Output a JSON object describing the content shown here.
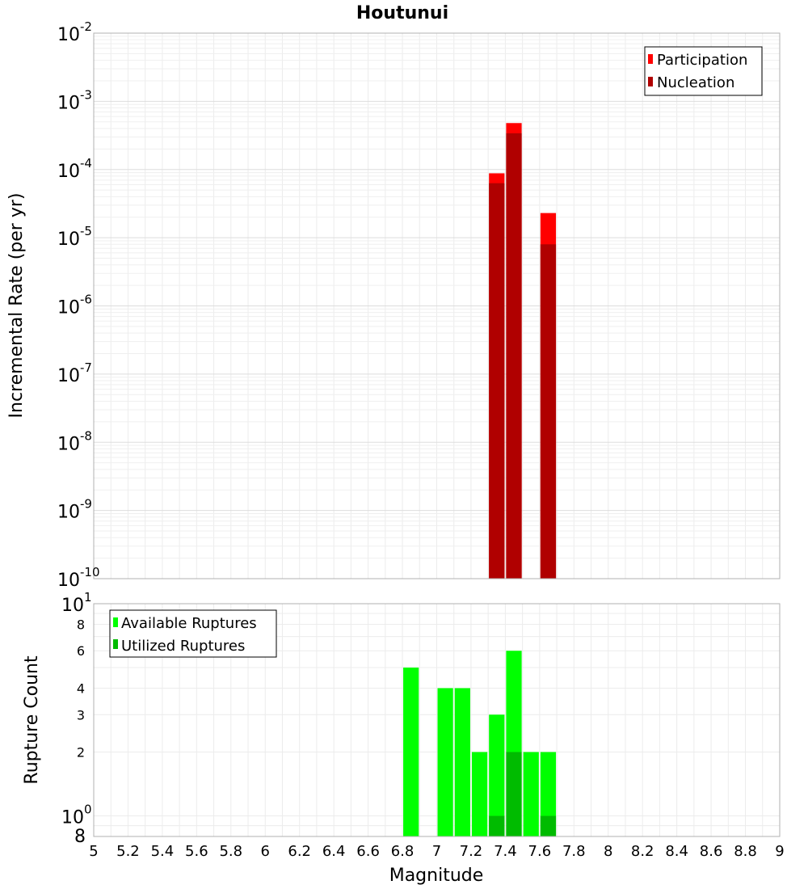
{
  "chart_data": [
    {
      "type": "bar",
      "title": "Houtunui",
      "xlabel": "",
      "ylabel": "Incremental Rate (per yr)",
      "yscale": "log",
      "xlim": [
        5,
        9
      ],
      "ylim": [
        1e-10,
        0.01
      ],
      "y_ticks": [
        {
          "base": "10",
          "exp": "-2"
        },
        {
          "base": "10",
          "exp": "-3"
        },
        {
          "base": "10",
          "exp": "-4"
        },
        {
          "base": "10",
          "exp": "-5"
        },
        {
          "base": "10",
          "exp": "-6"
        },
        {
          "base": "10",
          "exp": "-7"
        },
        {
          "base": "10",
          "exp": "-8"
        },
        {
          "base": "10",
          "exp": "-9"
        },
        {
          "base": "10",
          "exp": "-10"
        }
      ],
      "grid": true,
      "legend_position": "top-right",
      "bar_width": 0.1,
      "series": [
        {
          "name": "Participation",
          "color": "#ff0000",
          "points": [
            {
              "x": 7.35,
              "y": 8.8e-05
            },
            {
              "x": 7.45,
              "y": 0.00048
            },
            {
              "x": 7.65,
              "y": 2.3e-05
            }
          ]
        },
        {
          "name": "Nucleation",
          "color": "#b00000",
          "points": [
            {
              "x": 7.35,
              "y": 6.3e-05
            },
            {
              "x": 7.45,
              "y": 0.00034
            },
            {
              "x": 7.65,
              "y": 8e-06
            }
          ]
        }
      ]
    },
    {
      "type": "bar",
      "title": "",
      "xlabel": "Magnitude",
      "ylabel": "Rupture Count",
      "yscale": "log",
      "xlim": [
        5,
        9
      ],
      "ylim": [
        0.8,
        10
      ],
      "x_ticks": [
        "5",
        "5.2",
        "5.4",
        "5.6",
        "5.8",
        "6",
        "6.2",
        "6.4",
        "6.6",
        "6.8",
        "7",
        "7.2",
        "7.4",
        "7.6",
        "7.8",
        "8",
        "8.2",
        "8.4",
        "8.6",
        "8.8",
        "9"
      ],
      "y_ticks_minor": [
        {
          "value": 8,
          "label": "8"
        },
        {
          "value": 6,
          "label": "6"
        },
        {
          "value": 4,
          "label": "4"
        },
        {
          "value": 3,
          "label": "3"
        },
        {
          "value": 2,
          "label": "2"
        }
      ],
      "y_tick_top": {
        "base": "10",
        "exp": "1"
      },
      "y_tick_one": {
        "base": "10",
        "exp": "0"
      },
      "y_tick_bottom": "8",
      "grid": true,
      "legend_position": "top-left",
      "bar_width": 0.1,
      "series": [
        {
          "name": "Available Ruptures",
          "color": "#00ff00",
          "points": [
            {
              "x": 6.85,
              "y": 5
            },
            {
              "x": 7.05,
              "y": 4
            },
            {
              "x": 7.15,
              "y": 4
            },
            {
              "x": 7.25,
              "y": 2
            },
            {
              "x": 7.35,
              "y": 3
            },
            {
              "x": 7.45,
              "y": 6
            },
            {
              "x": 7.55,
              "y": 2
            },
            {
              "x": 7.65,
              "y": 2
            }
          ]
        },
        {
          "name": "Utilized Ruptures",
          "color": "#00bb00",
          "points": [
            {
              "x": 7.35,
              "y": 1
            },
            {
              "x": 7.45,
              "y": 2
            },
            {
              "x": 7.65,
              "y": 1
            }
          ]
        }
      ]
    }
  ]
}
